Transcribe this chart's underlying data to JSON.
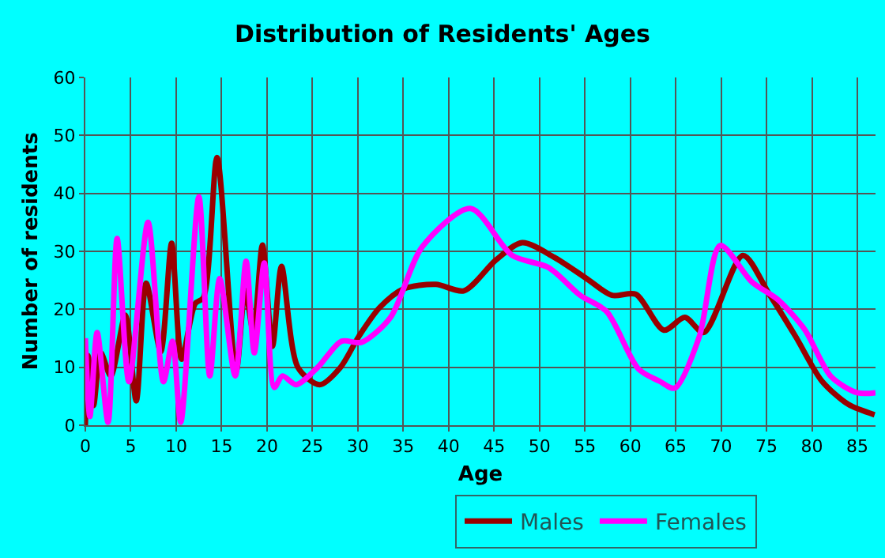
{
  "chart_data": {
    "type": "line",
    "title": "Distribution of Residents' Ages",
    "xlabel": "Age",
    "ylabel": "Number of residents",
    "xlim": [
      0,
      87
    ],
    "xticks": [
      0,
      5,
      10,
      15,
      20,
      25,
      30,
      35,
      40,
      45,
      50,
      55,
      60,
      65,
      70,
      75,
      80,
      85
    ],
    "ylim": [
      0,
      60
    ],
    "yticks": [
      0,
      10,
      20,
      30,
      40,
      50,
      60
    ],
    "grid": true,
    "legend": "bottom",
    "marker": "none",
    "line_style": "solid",
    "series": [
      {
        "name": "Males",
        "color": "#990000",
        "x": [
          0,
          0.3,
          0.9,
          1.7,
          2.8,
          4.4,
          5.6,
          6.7,
          8.3,
          9.5,
          10.6,
          12.1,
          13,
          14.5,
          16.6,
          17.6,
          18.5,
          19.5,
          20.6,
          21.6,
          23.4,
          25.8,
          28.1,
          30.1,
          32.4,
          35,
          38.6,
          41.7,
          45.2,
          48.1,
          51.6,
          55.1,
          58,
          60.6,
          63.7,
          66,
          68.1,
          72.4,
          75.3,
          78.2,
          81.1,
          84,
          86.9
        ],
        "values": [
          0,
          12,
          3.4,
          12.5,
          8.5,
          19,
          4.2,
          24.5,
          12.7,
          31.4,
          11.4,
          21,
          22,
          46.2,
          9.3,
          23.3,
          16.1,
          31.1,
          13.6,
          27.4,
          10,
          7,
          10,
          15.3,
          20.3,
          23.5,
          24.3,
          23.2,
          28.5,
          31.5,
          29,
          25.4,
          22.4,
          22.6,
          16.4,
          18.6,
          16,
          29.3,
          22.6,
          15.3,
          7.6,
          3.6,
          1.8
        ]
      },
      {
        "name": "Females",
        "color": "#ff00ff",
        "x": [
          0,
          0.5,
          1.3,
          2.5,
          3.5,
          4.8,
          6.9,
          8.6,
          9.6,
          10.5,
          12.5,
          13.7,
          14.8,
          16.5,
          17.7,
          18.6,
          19.7,
          20.8,
          21.7,
          23.2,
          25.6,
          28.2,
          30.4,
          33.6,
          37.1,
          42.4,
          47,
          51,
          54.5,
          57.4,
          60.9,
          63.2,
          64.9,
          67.6,
          69.9,
          73.4,
          76.3,
          79.2,
          82.1,
          85,
          87
        ],
        "values": [
          15,
          1.5,
          16,
          0.5,
          32.2,
          7.5,
          35,
          7.5,
          14.5,
          0.5,
          39.4,
          8.5,
          25.3,
          8.5,
          28.3,
          12.5,
          28,
          6.5,
          8.5,
          7,
          10,
          14.5,
          14.3,
          18.6,
          30.8,
          37.4,
          29.3,
          27.2,
          22.4,
          19.6,
          9.7,
          7.6,
          6.4,
          15.3,
          31,
          24.7,
          21.6,
          16.5,
          8.4,
          5.6,
          5.6
        ]
      }
    ]
  }
}
